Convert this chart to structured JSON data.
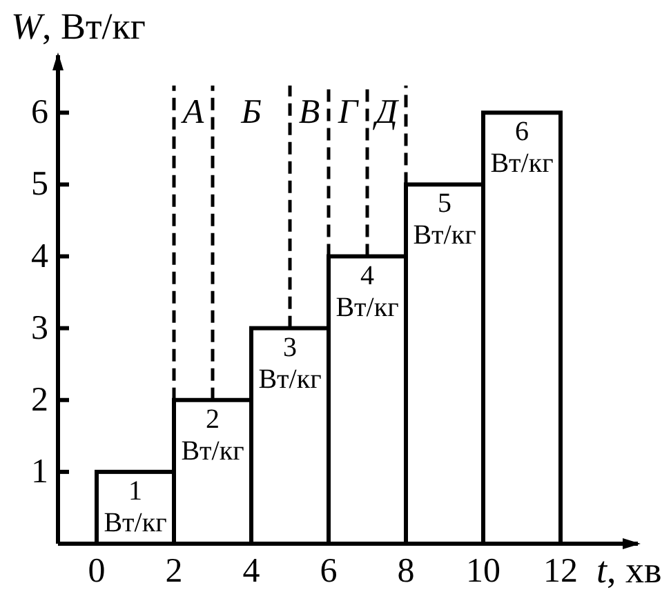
{
  "chart_data": {
    "type": "histogram",
    "xlabel": "t, хв",
    "ylabel": "W, Вт/кг",
    "bins": [
      0,
      2,
      4,
      6,
      8,
      10,
      12
    ],
    "values": [
      1,
      2,
      3,
      4,
      5,
      6
    ],
    "color": "#ffffff",
    "value_labels": [
      "1 Вт/кг",
      "2 Вт/кг",
      "3 Вт/кг",
      "4 Вт/кг",
      "5 Вт/кг",
      "6 Вт/кг"
    ],
    "xlim": [
      -1,
      14
    ],
    "ylim": [
      0,
      6.8
    ],
    "xticks": [
      0,
      2,
      4,
      6,
      8,
      10,
      12
    ],
    "yticks": [
      1,
      2,
      3,
      4,
      5,
      6
    ],
    "ref_lines": [
      {
        "axis": "x",
        "value": 2,
        "line_style": "dashed"
      },
      {
        "axis": "x",
        "value": 3,
        "line_style": "dashed"
      },
      {
        "axis": "x",
        "value": 5,
        "line_style": "dashed"
      },
      {
        "axis": "x",
        "value": 6,
        "line_style": "dashed"
      },
      {
        "axis": "x",
        "value": 7,
        "line_style": "dashed"
      },
      {
        "axis": "x",
        "value": 8,
        "line_style": "dashed"
      }
    ],
    "annotations": [
      "А",
      "Б",
      "В",
      "Г",
      "Д"
    ]
  }
}
